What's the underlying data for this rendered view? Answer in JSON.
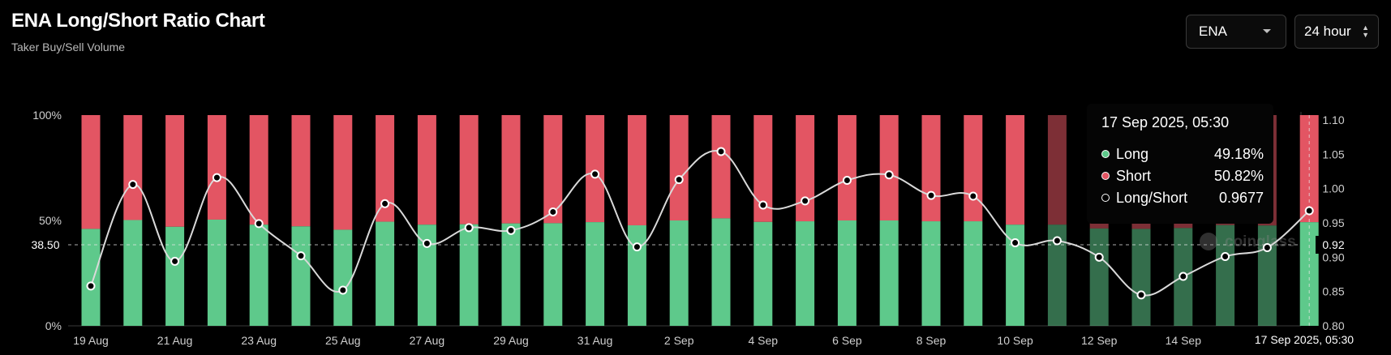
{
  "header": {
    "title": "ENA Long/Short Ratio Chart",
    "subtitle": "Taker Buy/Sell Volume"
  },
  "controls": {
    "symbol": "ENA",
    "interval": "24 hour"
  },
  "tooltip": {
    "date": "17 Sep 2025, 05:30",
    "long_label": "Long",
    "long_value": "49.18%",
    "short_label": "Short",
    "short_value": "50.82%",
    "ratio_label": "Long/Short",
    "ratio_value": "0.9677"
  },
  "crosshair": {
    "left_label": "38.50",
    "right_label": "0.92",
    "x_label": "17 Sep 2025, 05:30"
  },
  "watermark": "coinglass",
  "colors": {
    "long": "#5ec98b",
    "short": "#e35563",
    "line": "#d9d9d9",
    "background": "#000000"
  },
  "chart_data": {
    "type": "bar",
    "stacked": true,
    "categories": [
      "19 Aug",
      "20 Aug",
      "21 Aug",
      "22 Aug",
      "23 Aug",
      "24 Aug",
      "25 Aug",
      "26 Aug",
      "27 Aug",
      "28 Aug",
      "29 Aug",
      "30 Aug",
      "31 Aug",
      "1 Sep",
      "2 Sep",
      "3 Sep",
      "4 Sep",
      "5 Sep",
      "6 Sep",
      "7 Sep",
      "8 Sep",
      "9 Sep",
      "10 Sep",
      "11 Sep",
      "12 Sep",
      "13 Sep",
      "14 Sep",
      "15 Sep",
      "16 Sep",
      "17 Sep"
    ],
    "x_tick_labels": [
      "19 Aug",
      "21 Aug",
      "23 Aug",
      "25 Aug",
      "27 Aug",
      "29 Aug",
      "31 Aug",
      "2 Sep",
      "4 Sep",
      "6 Sep",
      "8 Sep",
      "10 Sep",
      "12 Sep",
      "14 Sep"
    ],
    "series": [
      {
        "name": "Long",
        "axis": "left",
        "values": [
          46.0,
          50.2,
          47.0,
          50.4,
          48.0,
          47.2,
          45.6,
          49.4,
          48.0,
          48.2,
          48.6,
          48.7,
          49.2,
          47.7,
          50.0,
          51.0,
          49.3,
          49.6,
          50.0,
          50.0,
          49.6,
          49.6,
          48.0,
          48.0,
          46.2,
          46.0,
          46.4,
          47.8,
          47.6,
          49.18
        ]
      },
      {
        "name": "Short",
        "axis": "left",
        "values": [
          54.0,
          49.8,
          53.0,
          49.6,
          52.0,
          52.8,
          54.4,
          50.6,
          52.0,
          51.8,
          51.4,
          51.3,
          50.8,
          52.3,
          50.0,
          49.0,
          50.7,
          50.4,
          50.0,
          50.0,
          50.4,
          50.4,
          52.0,
          52.0,
          53.8,
          54.0,
          53.6,
          52.2,
          52.4,
          50.82
        ]
      },
      {
        "name": "Long/Short",
        "axis": "right",
        "type": "line",
        "values": [
          0.858,
          1.006,
          0.894,
          1.016,
          0.949,
          0.902,
          0.852,
          0.978,
          0.92,
          0.943,
          0.939,
          0.966,
          1.021,
          0.915,
          1.013,
          1.054,
          0.976,
          0.982,
          1.012,
          1.02,
          0.99,
          0.989,
          0.921,
          0.924,
          0.9,
          0.845,
          0.872,
          0.901,
          0.914,
          0.9677
        ]
      }
    ],
    "y_left": {
      "ticks": [
        "0%",
        "50%",
        "100%"
      ],
      "ylim": [
        0,
        100
      ]
    },
    "y_right": {
      "ticks": [
        "0.80",
        "0.85",
        "0.90",
        "0.95",
        "1.00",
        "1.05",
        "1.10"
      ],
      "ylim": [
        0.8,
        1.1
      ]
    }
  }
}
